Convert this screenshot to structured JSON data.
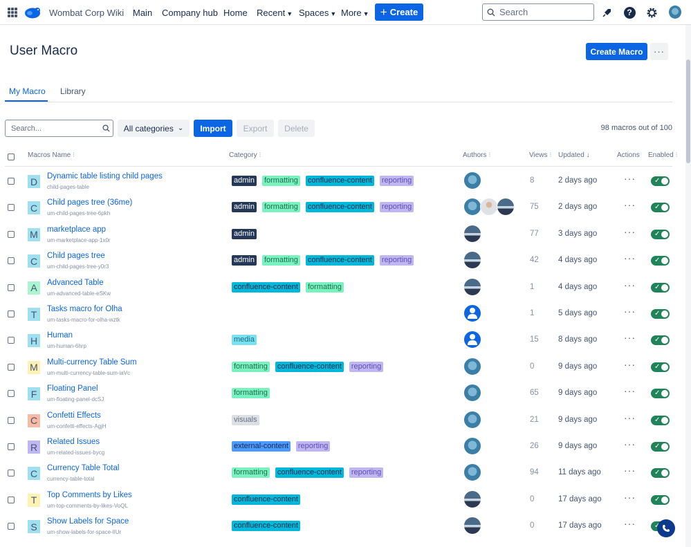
{
  "topbar": {
    "site_name": "Wombat Corp Wiki",
    "nav": [
      {
        "label": "Main",
        "has_chevron": false
      },
      {
        "label": "Company hub",
        "has_chevron": false
      },
      {
        "label": "Home",
        "has_chevron": false
      },
      {
        "label": "Recent",
        "has_chevron": true
      },
      {
        "label": "Spaces",
        "has_chevron": true
      },
      {
        "label": "More",
        "has_chevron": true
      }
    ],
    "create_label": "Create",
    "search_placeholder": "Search",
    "icons": [
      "apps-grid-icon",
      "wombat-logo",
      "search-icon",
      "notifications-icon",
      "help-icon",
      "settings-icon",
      "user-avatar"
    ]
  },
  "header": {
    "title": "User Macro",
    "create_macro_label": "Create Macro",
    "more_label": "···"
  },
  "tabs": [
    {
      "label": "My Macro",
      "active": true
    },
    {
      "label": "Library",
      "active": false
    }
  ],
  "toolbar": {
    "search_placeholder": "Search...",
    "category_label": "All categories",
    "import_label": "Import",
    "export_label": "Export",
    "delete_label": "Delete",
    "count_text": "98 macros out of 100"
  },
  "table": {
    "headers": {
      "name": "Macros Name",
      "category": "Category",
      "authors": "Authors",
      "views": "Views",
      "updated": "Updated",
      "actions": "Actions",
      "enabled": "Enabled"
    },
    "rows": [
      {
        "letter": "D",
        "letter_bg": "#9ee0f0",
        "name": "Dynamic table listing child pages",
        "key": "child-pages-table",
        "tags": [
          "admin",
          "formatting",
          "confluence-content",
          "reporting"
        ],
        "authors": [
          "wombat"
        ],
        "views": "8",
        "updated": "2 days ago",
        "enabled": true
      },
      {
        "letter": "C",
        "letter_bg": "#9ee0f0",
        "name": "Child pages tree (36me)",
        "key": "um-child-pages-tree-6pkh",
        "tags": [
          "admin",
          "formatting",
          "confluence-content",
          "reporting"
        ],
        "authors": [
          "wombat",
          "person",
          "mountain"
        ],
        "views": "75",
        "updated": "2 days ago",
        "enabled": true
      },
      {
        "letter": "M",
        "letter_bg": "#9ee0f0",
        "name": "marketplace app",
        "key": "um-marketplace-app-1x0r",
        "tags": [
          "admin"
        ],
        "authors": [
          "mountain"
        ],
        "views": "77",
        "updated": "3 days ago",
        "enabled": true
      },
      {
        "letter": "C",
        "letter_bg": "#9ee0f0",
        "name": "Child pages tree",
        "key": "um-child-pages-tree-y0r3",
        "tags": [
          "admin",
          "formatting",
          "confluence-content",
          "reporting"
        ],
        "authors": [
          "mountain"
        ],
        "views": "42",
        "updated": "4 days ago",
        "enabled": true
      },
      {
        "letter": "A",
        "letter_bg": "#abf5d1",
        "name": "Advanced Table",
        "key": "um-advanced-table-eSKw",
        "tags": [
          "confluence-content",
          "formatting"
        ],
        "authors": [
          "mountain"
        ],
        "views": "1",
        "updated": "4 days ago",
        "enabled": true
      },
      {
        "letter": "T",
        "letter_bg": "#9ee0f0",
        "name": "Tasks macro for Olha",
        "key": "um-tasks-macro-for-olha-wztk",
        "tags": [],
        "authors": [
          "default"
        ],
        "views": "1",
        "updated": "5 days ago",
        "enabled": true
      },
      {
        "letter": "H",
        "letter_bg": "#9ee0f0",
        "name": "Human",
        "key": "um-human-6hrp",
        "tags": [
          "media"
        ],
        "authors": [
          "default"
        ],
        "views": "15",
        "updated": "8 days ago",
        "enabled": true
      },
      {
        "letter": "M",
        "letter_bg": "#fff0b3",
        "name": "Multi-currency Table Sum",
        "key": "um-multi-currency-table-sum-iaVc",
        "tags": [
          "formatting",
          "confluence-content",
          "reporting"
        ],
        "authors": [
          "wombat"
        ],
        "views": "0",
        "updated": "9 days ago",
        "enabled": true
      },
      {
        "letter": "F",
        "letter_bg": "#9ee0f0",
        "name": "Floating Panel",
        "key": "um-floating-panel-dcSJ",
        "tags": [
          "formatting"
        ],
        "authors": [
          "wombat"
        ],
        "views": "65",
        "updated": "9 days ago",
        "enabled": true
      },
      {
        "letter": "C",
        "letter_bg": "#f8b9a5",
        "name": "Confetti Effects",
        "key": "um-confetti-effects-AgjH",
        "tags": [
          "visuals"
        ],
        "authors": [
          "wombat"
        ],
        "views": "21",
        "updated": "9 days ago",
        "enabled": true
      },
      {
        "letter": "R",
        "letter_bg": "#c0b6f2",
        "name": "Related Issues",
        "key": "um-related-issues-bycg",
        "tags": [
          "external-content",
          "reporting"
        ],
        "authors": [
          "wombat"
        ],
        "views": "26",
        "updated": "9 days ago",
        "enabled": true
      },
      {
        "letter": "C",
        "letter_bg": "#9ee0f0",
        "name": "Currency Table Total",
        "key": "currency-table-total",
        "tags": [
          "formatting",
          "confluence-content",
          "reporting"
        ],
        "authors": [
          "wombat"
        ],
        "views": "94",
        "updated": "11 days ago",
        "enabled": true
      },
      {
        "letter": "T",
        "letter_bg": "#fff0b3",
        "name": "Top Comments by Likes",
        "key": "um-top-comments-by-likes-VoQL",
        "tags": [
          "confluence-content"
        ],
        "authors": [
          "mountain"
        ],
        "views": "0",
        "updated": "17 days ago",
        "enabled": true
      },
      {
        "letter": "S",
        "letter_bg": "#9ee0f0",
        "name": "Show Labels for Space",
        "key": "um-show-labels-for-space-lIUr",
        "tags": [
          "confluence-content"
        ],
        "authors": [
          "mountain"
        ],
        "views": "0",
        "updated": "17 days ago",
        "enabled": true
      }
    ]
  },
  "colors": {
    "primary": "#0c66e4",
    "toggle_on": "#1f845a",
    "text": "#172b4d"
  }
}
